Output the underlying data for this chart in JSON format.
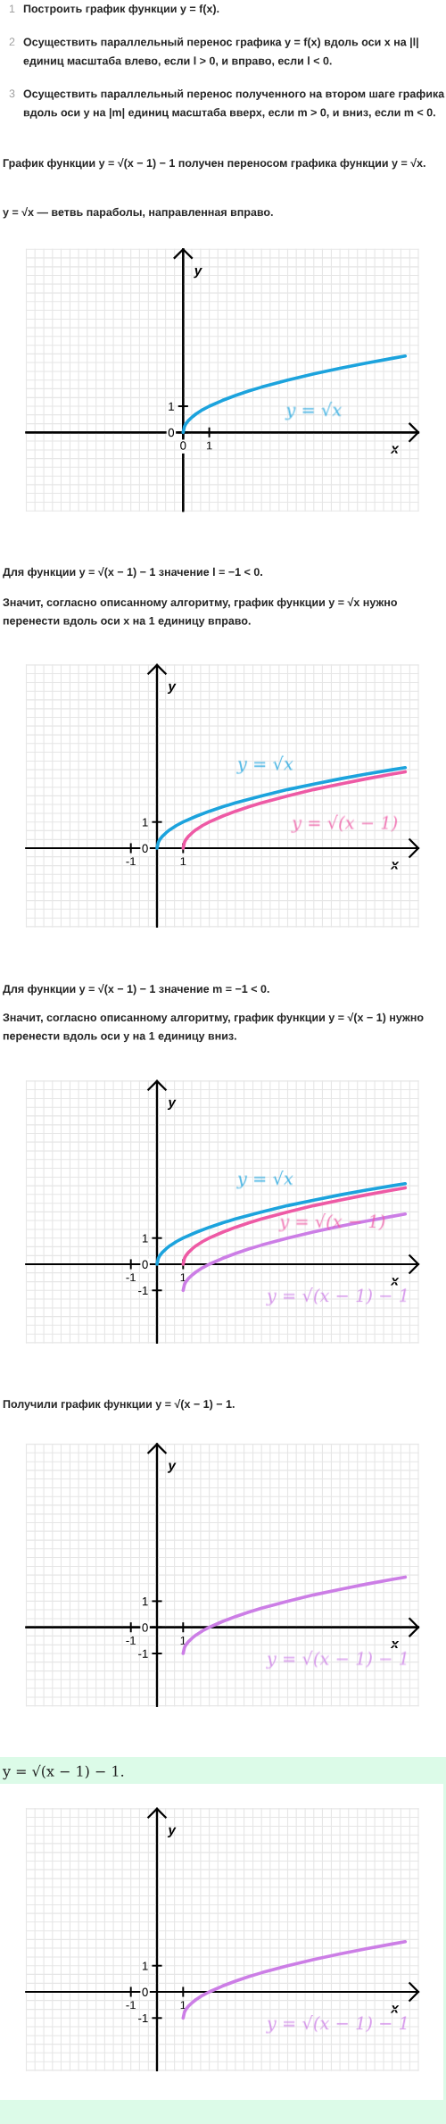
{
  "chart_data": [
    {
      "type": "line",
      "annotations": [
        "1 Построить график функции y = f(x).",
        "2 Осуществить параллельный перенос графика y = f(x) вдоль оси x на |l| единиц масштаба влево, если l > 0, и вправо, если l < 0.",
        "3 Осуществить параллельный перенос полученного на втором шаге графика вдоль оси y на |m| единиц масштаба вверх, если m > 0, и вниз, если m < 0.",
        "График функции y = √(x − 1) − 1 получен переносом графика функции y = √x.",
        "y = √x — ветвь параболы, направленная вправо."
      ],
      "xlabel": "x",
      "ylabel": "y",
      "grid": true,
      "xlim": [
        -6,
        9
      ],
      "ylim": [
        -3,
        7
      ],
      "xticks": [
        {
          "value": -6,
          "label": null
        },
        {
          "value": -5.67,
          "label": null
        },
        {
          "value": -5.33,
          "label": null
        },
        {
          "value": -5,
          "label": null
        },
        {
          "value": -4.67,
          "label": null
        },
        {
          "value": -4.33,
          "label": null
        },
        {
          "value": -4,
          "label": null
        },
        {
          "value": -3.67,
          "label": null
        },
        {
          "value": -3.33,
          "label": null
        },
        {
          "value": -3,
          "label": null
        },
        {
          "value": -2.67,
          "label": null
        },
        {
          "value": -2.33,
          "label": null
        },
        {
          "value": -2,
          "label": null
        },
        {
          "value": -1.67,
          "label": null
        },
        {
          "value": -1.33,
          "label": null
        },
        {
          "value": -1,
          "label": null
        },
        {
          "value": -0.67,
          "label": null
        },
        {
          "value": -0.33,
          "label": null
        },
        0,
        {
          "value": 0.33,
          "label": null
        },
        {
          "value": 0.67,
          "label": null
        },
        1,
        {
          "value": 1.33,
          "label": null
        },
        {
          "value": 1.67,
          "label": null
        },
        {
          "value": 2,
          "label": null
        },
        {
          "value": 2.33,
          "label": null
        },
        {
          "value": 2.67,
          "label": null
        },
        {
          "value": 3,
          "label": null
        },
        {
          "value": 3.33,
          "label": null
        },
        {
          "value": 3.67,
          "label": null
        },
        {
          "value": 4,
          "label": null
        },
        {
          "value": 4.33,
          "label": null
        },
        {
          "value": 4.67,
          "label": null
        },
        {
          "value": 5,
          "label": null
        },
        {
          "value": 5.33,
          "label": null
        },
        {
          "value": 5.67,
          "label": null
        },
        {
          "value": 6,
          "label": null
        },
        {
          "value": 6.33,
          "label": null
        },
        {
          "value": 6.67,
          "label": null
        },
        {
          "value": 7,
          "label": null
        },
        {
          "value": 7.33,
          "label": null
        },
        {
          "value": 7.67,
          "label": null
        },
        {
          "value": 8,
          "label": null
        },
        {
          "value": 8.33,
          "label": null
        },
        {
          "value": 8.67,
          "label": null
        },
        {
          "value": 9,
          "label": null
        }
      ],
      "yticks": [
        {
          "value": -3,
          "label": null
        },
        {
          "value": -2.67,
          "label": null
        },
        {
          "value": -2.33,
          "label": null
        },
        {
          "value": -2,
          "label": null
        },
        {
          "value": -1.67,
          "label": null
        },
        {
          "value": -1.33,
          "label": null
        },
        {
          "value": -1,
          "label": null
        },
        {
          "value": -0.67,
          "label": null
        },
        {
          "value": -0.33,
          "label": null
        },
        0,
        {
          "value": 0.33,
          "label": null
        },
        {
          "value": 0.67,
          "label": null
        },
        1,
        {
          "value": 1.33,
          "label": null
        },
        {
          "value": 1.67,
          "label": null
        },
        {
          "value": 2,
          "label": null
        },
        {
          "value": 2.33,
          "label": null
        },
        {
          "value": 2.67,
          "label": null
        },
        {
          "value": 3,
          "label": null
        },
        {
          "value": 3.33,
          "label": null
        },
        {
          "value": 3.67,
          "label": null
        },
        {
          "value": 4,
          "label": null
        },
        {
          "value": 4.33,
          "label": null
        },
        {
          "value": 4.67,
          "label": null
        },
        {
          "value": 5,
          "label": null
        },
        {
          "value": 5.33,
          "label": null
        },
        {
          "value": 5.67,
          "label": null
        },
        {
          "value": 6,
          "label": null
        },
        {
          "value": 6.33,
          "label": null
        },
        {
          "value": 6.67,
          "label": null
        },
        {
          "value": 7,
          "label": null
        }
      ],
      "series": [
        {
          "name": "y = √x",
          "color": "#1ca3dd",
          "x": [
            0,
            0.05,
            0.1,
            0.2,
            0.35,
            0.5,
            0.75,
            1,
            1.5,
            2,
            2.5,
            3,
            4,
            5,
            6,
            7,
            8,
            8.5
          ],
          "values": [
            0,
            0.22,
            0.32,
            0.45,
            0.59,
            0.71,
            0.87,
            1,
            1.22,
            1.41,
            1.58,
            1.73,
            2,
            2.24,
            2.45,
            2.65,
            2.83,
            2.92
          ]
        }
      ]
    },
    {
      "type": "line",
      "annotations": [
        "Для функции y = √(x − 1) − 1 значение l = −1 < 0.",
        "Значит, согласно описанному алгоритму, график функции y = √x нужно перенести вдоль оси x на 1 единицу вправо."
      ],
      "xlabel": "x",
      "ylabel": "y",
      "grid": true,
      "xlim": [
        -5,
        10
      ],
      "ylim": [
        -3,
        7
      ],
      "xticks": [
        {
          "value": -5,
          "label": null
        },
        {
          "value": -4.67,
          "label": null
        },
        {
          "value": -4.33,
          "label": null
        },
        {
          "value": -4,
          "label": null
        },
        {
          "value": -3.67,
          "label": null
        },
        {
          "value": -3.33,
          "label": null
        },
        {
          "value": -3,
          "label": null
        },
        {
          "value": -2.67,
          "label": null
        },
        {
          "value": -2.33,
          "label": null
        },
        {
          "value": -2,
          "label": null
        },
        {
          "value": -1.67,
          "label": null
        },
        {
          "value": -1.33,
          "label": null
        },
        -1,
        {
          "value": -0.67,
          "label": null
        },
        {
          "value": -0.33,
          "label": null
        },
        {
          "value": 0,
          "label": null
        },
        {
          "value": 0.33,
          "label": null
        },
        {
          "value": 0.67,
          "label": null
        },
        1,
        {
          "value": 1.33,
          "label": null
        },
        {
          "value": 1.67,
          "label": null
        },
        {
          "value": 2,
          "label": null
        },
        {
          "value": 2.33,
          "label": null
        },
        {
          "value": 2.67,
          "label": null
        },
        {
          "value": 3,
          "label": null
        },
        {
          "value": 3.33,
          "label": null
        },
        {
          "value": 3.67,
          "label": null
        },
        {
          "value": 4,
          "label": null
        },
        {
          "value": 4.33,
          "label": null
        },
        {
          "value": 4.67,
          "label": null
        },
        {
          "value": 5,
          "label": null
        },
        {
          "value": 5.33,
          "label": null
        },
        {
          "value": 5.67,
          "label": null
        },
        {
          "value": 6,
          "label": null
        },
        {
          "value": 6.33,
          "label": null
        },
        {
          "value": 6.67,
          "label": null
        },
        {
          "value": 7,
          "label": null
        },
        {
          "value": 7.33,
          "label": null
        },
        {
          "value": 7.67,
          "label": null
        },
        {
          "value": 8,
          "label": null
        },
        {
          "value": 8.33,
          "label": null
        },
        {
          "value": 8.67,
          "label": null
        },
        {
          "value": 9,
          "label": null
        },
        {
          "value": 9.33,
          "label": null
        },
        {
          "value": 9.67,
          "label": null
        },
        {
          "value": 10,
          "label": null
        }
      ],
      "yticks": [
        {
          "value": -3,
          "label": null
        },
        {
          "value": -2.67,
          "label": null
        },
        {
          "value": -2.33,
          "label": null
        },
        {
          "value": -2,
          "label": null
        },
        {
          "value": -1.67,
          "label": null
        },
        {
          "value": -1.33,
          "label": null
        },
        {
          "value": -1,
          "label": null
        },
        {
          "value": -0.67,
          "label": null
        },
        {
          "value": -0.33,
          "label": null
        },
        0,
        {
          "value": 0.33,
          "label": null
        },
        {
          "value": 0.67,
          "label": null
        },
        1,
        {
          "value": 1.33,
          "label": null
        },
        {
          "value": 1.67,
          "label": null
        },
        {
          "value": 2,
          "label": null
        },
        {
          "value": 2.33,
          "label": null
        },
        {
          "value": 2.67,
          "label": null
        },
        {
          "value": 3,
          "label": null
        },
        {
          "value": 3.33,
          "label": null
        },
        {
          "value": 3.67,
          "label": null
        },
        {
          "value": 4,
          "label": null
        },
        {
          "value": 4.33,
          "label": null
        },
        {
          "value": 4.67,
          "label": null
        },
        {
          "value": 5,
          "label": null
        },
        {
          "value": 5.33,
          "label": null
        },
        {
          "value": 5.67,
          "label": null
        },
        {
          "value": 6,
          "label": null
        },
        {
          "value": 6.33,
          "label": null
        },
        {
          "value": 6.67,
          "label": null
        },
        {
          "value": 7,
          "label": null
        }
      ],
      "series": [
        {
          "name": "y = √x",
          "color": "#1ca3dd",
          "x": [
            0,
            0.05,
            0.1,
            0.2,
            0.35,
            0.5,
            0.75,
            1,
            1.5,
            2,
            2.5,
            3,
            4,
            5,
            6,
            7,
            8,
            9,
            9.5
          ],
          "values": [
            0,
            0.22,
            0.32,
            0.45,
            0.59,
            0.71,
            0.87,
            1,
            1.22,
            1.41,
            1.58,
            1.73,
            2,
            2.24,
            2.45,
            2.65,
            2.83,
            3,
            3.08
          ]
        },
        {
          "name": "y = √(x − 1)",
          "color": "#ee5aa5",
          "x": [
            1,
            1.05,
            1.1,
            1.2,
            1.35,
            1.5,
            1.75,
            2,
            2.5,
            3,
            3.5,
            4,
            5,
            6,
            7,
            8,
            9,
            9.5
          ],
          "values": [
            0,
            0.22,
            0.32,
            0.45,
            0.59,
            0.71,
            0.87,
            1,
            1.22,
            1.41,
            1.58,
            1.73,
            2,
            2.24,
            2.45,
            2.65,
            2.83,
            2.92
          ]
        }
      ]
    },
    {
      "type": "line",
      "annotations": [
        "Для функции y = √(x − 1) − 1 значение m = −1 < 0.",
        "Значит, согласно описанному алгоритму, график функции y = √(x − 1) нужно перенести вдоль оси y на 1 единицу вниз."
      ],
      "xlabel": "x",
      "ylabel": "y",
      "grid": true,
      "xlim": [
        -5,
        10
      ],
      "ylim": [
        -3,
        7
      ],
      "xticks": [
        {
          "value": -5,
          "label": null
        },
        {
          "value": -4.67,
          "label": null
        },
        {
          "value": -4.33,
          "label": null
        },
        {
          "value": -4,
          "label": null
        },
        {
          "value": -3.67,
          "label": null
        },
        {
          "value": -3.33,
          "label": null
        },
        {
          "value": -3,
          "label": null
        },
        {
          "value": -2.67,
          "label": null
        },
        {
          "value": -2.33,
          "label": null
        },
        {
          "value": -2,
          "label": null
        },
        {
          "value": -1.67,
          "label": null
        },
        {
          "value": -1.33,
          "label": null
        },
        -1,
        {
          "value": -0.67,
          "label": null
        },
        {
          "value": -0.33,
          "label": null
        },
        {
          "value": 0,
          "label": null
        },
        {
          "value": 0.33,
          "label": null
        },
        {
          "value": 0.67,
          "label": null
        },
        1,
        {
          "value": 1.33,
          "label": null
        },
        {
          "value": 1.67,
          "label": null
        },
        {
          "value": 2,
          "label": null
        },
        {
          "value": 2.33,
          "label": null
        },
        {
          "value": 2.67,
          "label": null
        },
        {
          "value": 3,
          "label": null
        },
        {
          "value": 3.33,
          "label": null
        },
        {
          "value": 3.67,
          "label": null
        },
        {
          "value": 4,
          "label": null
        },
        {
          "value": 4.33,
          "label": null
        },
        {
          "value": 4.67,
          "label": null
        },
        {
          "value": 5,
          "label": null
        },
        {
          "value": 5.33,
          "label": null
        },
        {
          "value": 5.67,
          "label": null
        },
        {
          "value": 6,
          "label": null
        },
        {
          "value": 6.33,
          "label": null
        },
        {
          "value": 6.67,
          "label": null
        },
        {
          "value": 7,
          "label": null
        },
        {
          "value": 7.33,
          "label": null
        },
        {
          "value": 7.67,
          "label": null
        },
        {
          "value": 8,
          "label": null
        },
        {
          "value": 8.33,
          "label": null
        },
        {
          "value": 8.67,
          "label": null
        },
        {
          "value": 9,
          "label": null
        },
        {
          "value": 9.33,
          "label": null
        },
        {
          "value": 9.67,
          "label": null
        },
        {
          "value": 10,
          "label": null
        }
      ],
      "yticks": [
        {
          "value": -3,
          "label": null
        },
        {
          "value": -2.67,
          "label": null
        },
        {
          "value": -2.33,
          "label": null
        },
        {
          "value": -2,
          "label": null
        },
        {
          "value": -1.67,
          "label": null
        },
        {
          "value": -1.33,
          "label": null
        },
        -1,
        {
          "value": -0.67,
          "label": null
        },
        {
          "value": -0.33,
          "label": null
        },
        0,
        {
          "value": 0.33,
          "label": null
        },
        {
          "value": 0.67,
          "label": null
        },
        1,
        {
          "value": 1.33,
          "label": null
        },
        {
          "value": 1.67,
          "label": null
        },
        {
          "value": 2,
          "label": null
        },
        {
          "value": 2.33,
          "label": null
        },
        {
          "value": 2.67,
          "label": null
        },
        {
          "value": 3,
          "label": null
        },
        {
          "value": 3.33,
          "label": null
        },
        {
          "value": 3.67,
          "label": null
        },
        {
          "value": 4,
          "label": null
        },
        {
          "value": 4.33,
          "label": null
        },
        {
          "value": 4.67,
          "label": null
        },
        {
          "value": 5,
          "label": null
        },
        {
          "value": 5.33,
          "label": null
        },
        {
          "value": 5.67,
          "label": null
        },
        {
          "value": 6,
          "label": null
        },
        {
          "value": 6.33,
          "label": null
        },
        {
          "value": 6.67,
          "label": null
        },
        {
          "value": 7,
          "label": null
        }
      ],
      "series": [
        {
          "name": "y = √x",
          "color": "#1ca3dd",
          "x": [
            0,
            0.05,
            0.1,
            0.2,
            0.35,
            0.5,
            0.75,
            1,
            1.5,
            2,
            2.5,
            3,
            4,
            5,
            6,
            7,
            8,
            9,
            9.5
          ],
          "values": [
            0,
            0.22,
            0.32,
            0.45,
            0.59,
            0.71,
            0.87,
            1,
            1.22,
            1.41,
            1.58,
            1.73,
            2,
            2.24,
            2.45,
            2.65,
            2.83,
            3,
            3.08
          ]
        },
        {
          "name": "y = √(x − 1)",
          "color": "#ee5aa5",
          "x": [
            1,
            1.05,
            1.1,
            1.2,
            1.35,
            1.5,
            1.75,
            2,
            2.5,
            3,
            3.5,
            4,
            5,
            6,
            7,
            8,
            9,
            9.5
          ],
          "values": [
            0,
            0.22,
            0.32,
            0.45,
            0.59,
            0.71,
            0.87,
            1,
            1.22,
            1.41,
            1.58,
            1.73,
            2,
            2.24,
            2.45,
            2.65,
            2.83,
            2.92
          ]
        },
        {
          "name": "y = √(x − 1) − 1",
          "color": "#cc7ee6",
          "x": [
            1,
            1.05,
            1.1,
            1.2,
            1.35,
            1.5,
            1.75,
            2,
            2.5,
            3,
            3.5,
            4,
            5,
            6,
            7,
            8,
            9,
            9.5
          ],
          "values": [
            -1,
            -0.78,
            -0.68,
            -0.55,
            -0.41,
            -0.29,
            -0.13,
            0,
            0.22,
            0.41,
            0.58,
            0.73,
            1,
            1.24,
            1.45,
            1.65,
            1.83,
            1.92
          ]
        }
      ]
    },
    {
      "type": "line",
      "annotations": [
        "Получили график функции y = √(x − 1) − 1."
      ],
      "xlabel": "x",
      "ylabel": "y",
      "grid": true,
      "xlim": [
        -5,
        10
      ],
      "ylim": [
        -3,
        7
      ],
      "xticks": [
        {
          "value": -5,
          "label": null
        },
        {
          "value": -4.67,
          "label": null
        },
        {
          "value": -4.33,
          "label": null
        },
        {
          "value": -4,
          "label": null
        },
        {
          "value": -3.67,
          "label": null
        },
        {
          "value": -3.33,
          "label": null
        },
        {
          "value": -3,
          "label": null
        },
        {
          "value": -2.67,
          "label": null
        },
        {
          "value": -2.33,
          "label": null
        },
        {
          "value": -2,
          "label": null
        },
        {
          "value": -1.67,
          "label": null
        },
        {
          "value": -1.33,
          "label": null
        },
        -1,
        {
          "value": -0.67,
          "label": null
        },
        {
          "value": -0.33,
          "label": null
        },
        {
          "value": 0,
          "label": null
        },
        {
          "value": 0.33,
          "label": null
        },
        {
          "value": 0.67,
          "label": null
        },
        1,
        {
          "value": 1.33,
          "label": null
        },
        {
          "value": 1.67,
          "label": null
        },
        {
          "value": 2,
          "label": null
        },
        {
          "value": 2.33,
          "label": null
        },
        {
          "value": 2.67,
          "label": null
        },
        {
          "value": 3,
          "label": null
        },
        {
          "value": 3.33,
          "label": null
        },
        {
          "value": 3.67,
          "label": null
        },
        {
          "value": 4,
          "label": null
        },
        {
          "value": 4.33,
          "label": null
        },
        {
          "value": 4.67,
          "label": null
        },
        {
          "value": 5,
          "label": null
        },
        {
          "value": 5.33,
          "label": null
        },
        {
          "value": 5.67,
          "label": null
        },
        {
          "value": 6,
          "label": null
        },
        {
          "value": 6.33,
          "label": null
        },
        {
          "value": 6.67,
          "label": null
        },
        {
          "value": 7,
          "label": null
        },
        {
          "value": 7.33,
          "label": null
        },
        {
          "value": 7.67,
          "label": null
        },
        {
          "value": 8,
          "label": null
        },
        {
          "value": 8.33,
          "label": null
        },
        {
          "value": 8.67,
          "label": null
        },
        {
          "value": 9,
          "label": null
        },
        {
          "value": 9.33,
          "label": null
        },
        {
          "value": 9.67,
          "label": null
        },
        {
          "value": 10,
          "label": null
        }
      ],
      "yticks": [
        {
          "value": -3,
          "label": null
        },
        {
          "value": -2.67,
          "label": null
        },
        {
          "value": -2.33,
          "label": null
        },
        {
          "value": -2,
          "label": null
        },
        {
          "value": -1.67,
          "label": null
        },
        {
          "value": -1.33,
          "label": null
        },
        -1,
        {
          "value": -0.67,
          "label": null
        },
        {
          "value": -0.33,
          "label": null
        },
        0,
        {
          "value": 0.33,
          "label": null
        },
        {
          "value": 0.67,
          "label": null
        },
        1,
        {
          "value": 1.33,
          "label": null
        },
        {
          "value": 1.67,
          "label": null
        },
        {
          "value": 2,
          "label": null
        },
        {
          "value": 2.33,
          "label": null
        },
        {
          "value": 2.67,
          "label": null
        },
        {
          "value": 3,
          "label": null
        },
        {
          "value": 3.33,
          "label": null
        },
        {
          "value": 3.67,
          "label": null
        },
        {
          "value": 4,
          "label": null
        },
        {
          "value": 4.33,
          "label": null
        },
        {
          "value": 4.67,
          "label": null
        },
        {
          "value": 5,
          "label": null
        },
        {
          "value": 5.33,
          "label": null
        },
        {
          "value": 5.67,
          "label": null
        },
        {
          "value": 6,
          "label": null
        },
        {
          "value": 6.33,
          "label": null
        },
        {
          "value": 6.67,
          "label": null
        },
        {
          "value": 7,
          "label": null
        }
      ],
      "series": [
        {
          "name": "y = √(x − 1) − 1",
          "color": "#cc7ee6",
          "x": [
            1,
            1.05,
            1.1,
            1.2,
            1.35,
            1.5,
            1.75,
            2,
            2.5,
            3,
            3.5,
            4,
            5,
            6,
            7,
            8,
            9,
            9.5
          ],
          "values": [
            -1,
            -0.78,
            -0.68,
            -0.55,
            -0.41,
            -0.29,
            -0.13,
            0,
            0.22,
            0.41,
            0.58,
            0.73,
            1,
            1.24,
            1.45,
            1.65,
            1.83,
            1.92
          ]
        }
      ]
    },
    {
      "type": "line",
      "title": "y = √(x − 1) − 1.",
      "xlabel": "x",
      "ylabel": "y",
      "grid": true,
      "xlim": [
        -5,
        10
      ],
      "ylim": [
        -3,
        7
      ],
      "xticks": [
        {
          "value": -5,
          "label": null
        },
        {
          "value": -4.67,
          "label": null
        },
        {
          "value": -4.33,
          "label": null
        },
        {
          "value": -4,
          "label": null
        },
        {
          "value": -3.67,
          "label": null
        },
        {
          "value": -3.33,
          "label": null
        },
        {
          "value": -3,
          "label": null
        },
        {
          "value": -2.67,
          "label": null
        },
        {
          "value": -2.33,
          "label": null
        },
        {
          "value": -2,
          "label": null
        },
        {
          "value": -1.67,
          "label": null
        },
        {
          "value": -1.33,
          "label": null
        },
        -1,
        {
          "value": -0.67,
          "label": null
        },
        {
          "value": -0.33,
          "label": null
        },
        {
          "value": 0,
          "label": null
        },
        {
          "value": 0.33,
          "label": null
        },
        {
          "value": 0.67,
          "label": null
        },
        1,
        {
          "value": 1.33,
          "label": null
        },
        {
          "value": 1.67,
          "label": null
        },
        {
          "value": 2,
          "label": null
        },
        {
          "value": 2.33,
          "label": null
        },
        {
          "value": 2.67,
          "label": null
        },
        {
          "value": 3,
          "label": null
        },
        {
          "value": 3.33,
          "label": null
        },
        {
          "value": 3.67,
          "label": null
        },
        {
          "value": 4,
          "label": null
        },
        {
          "value": 4.33,
          "label": null
        },
        {
          "value": 4.67,
          "label": null
        },
        {
          "value": 5,
          "label": null
        },
        {
          "value": 5.33,
          "label": null
        },
        {
          "value": 5.67,
          "label": null
        },
        {
          "value": 6,
          "label": null
        },
        {
          "value": 6.33,
          "label": null
        },
        {
          "value": 6.67,
          "label": null
        },
        {
          "value": 7,
          "label": null
        },
        {
          "value": 7.33,
          "label": null
        },
        {
          "value": 7.67,
          "label": null
        },
        {
          "value": 8,
          "label": null
        },
        {
          "value": 8.33,
          "label": null
        },
        {
          "value": 8.67,
          "label": null
        },
        {
          "value": 9,
          "label": null
        },
        {
          "value": 9.33,
          "label": null
        },
        {
          "value": 9.67,
          "label": null
        },
        {
          "value": 10,
          "label": null
        }
      ],
      "yticks": [
        {
          "value": -3,
          "label": null
        },
        {
          "value": -2.67,
          "label": null
        },
        {
          "value": -2.33,
          "label": null
        },
        {
          "value": -2,
          "label": null
        },
        {
          "value": -1.67,
          "label": null
        },
        {
          "value": -1.33,
          "label": null
        },
        -1,
        {
          "value": -0.67,
          "label": null
        },
        {
          "value": -0.33,
          "label": null
        },
        0,
        {
          "value": 0.33,
          "label": null
        },
        {
          "value": 0.67,
          "label": null
        },
        1,
        {
          "value": 1.33,
          "label": null
        },
        {
          "value": 1.67,
          "label": null
        },
        {
          "value": 2,
          "label": null
        },
        {
          "value": 2.33,
          "label": null
        },
        {
          "value": 2.67,
          "label": null
        },
        {
          "value": 3,
          "label": null
        },
        {
          "value": 3.33,
          "label": null
        },
        {
          "value": 3.67,
          "label": null
        },
        {
          "value": 4,
          "label": null
        },
        {
          "value": 4.33,
          "label": null
        },
        {
          "value": 4.67,
          "label": null
        },
        {
          "value": 5,
          "label": null
        },
        {
          "value": 5.33,
          "label": null
        },
        {
          "value": 5.67,
          "label": null
        },
        {
          "value": 6,
          "label": null
        },
        {
          "value": 6.33,
          "label": null
        },
        {
          "value": 6.67,
          "label": null
        },
        {
          "value": 7,
          "label": null
        }
      ],
      "series": [
        {
          "name": "y = √(x − 1) − 1",
          "color": "#cc7ee6",
          "x": [
            1,
            1.05,
            1.1,
            1.2,
            1.35,
            1.5,
            1.75,
            2,
            2.5,
            3,
            3.5,
            4,
            5,
            6,
            7,
            8,
            9,
            9.5
          ],
          "values": [
            -1,
            -0.78,
            -0.68,
            -0.55,
            -0.41,
            -0.29,
            -0.13,
            0,
            0.22,
            0.41,
            0.58,
            0.73,
            1,
            1.24,
            1.45,
            1.65,
            1.83,
            1.92
          ]
        }
      ]
    }
  ]
}
